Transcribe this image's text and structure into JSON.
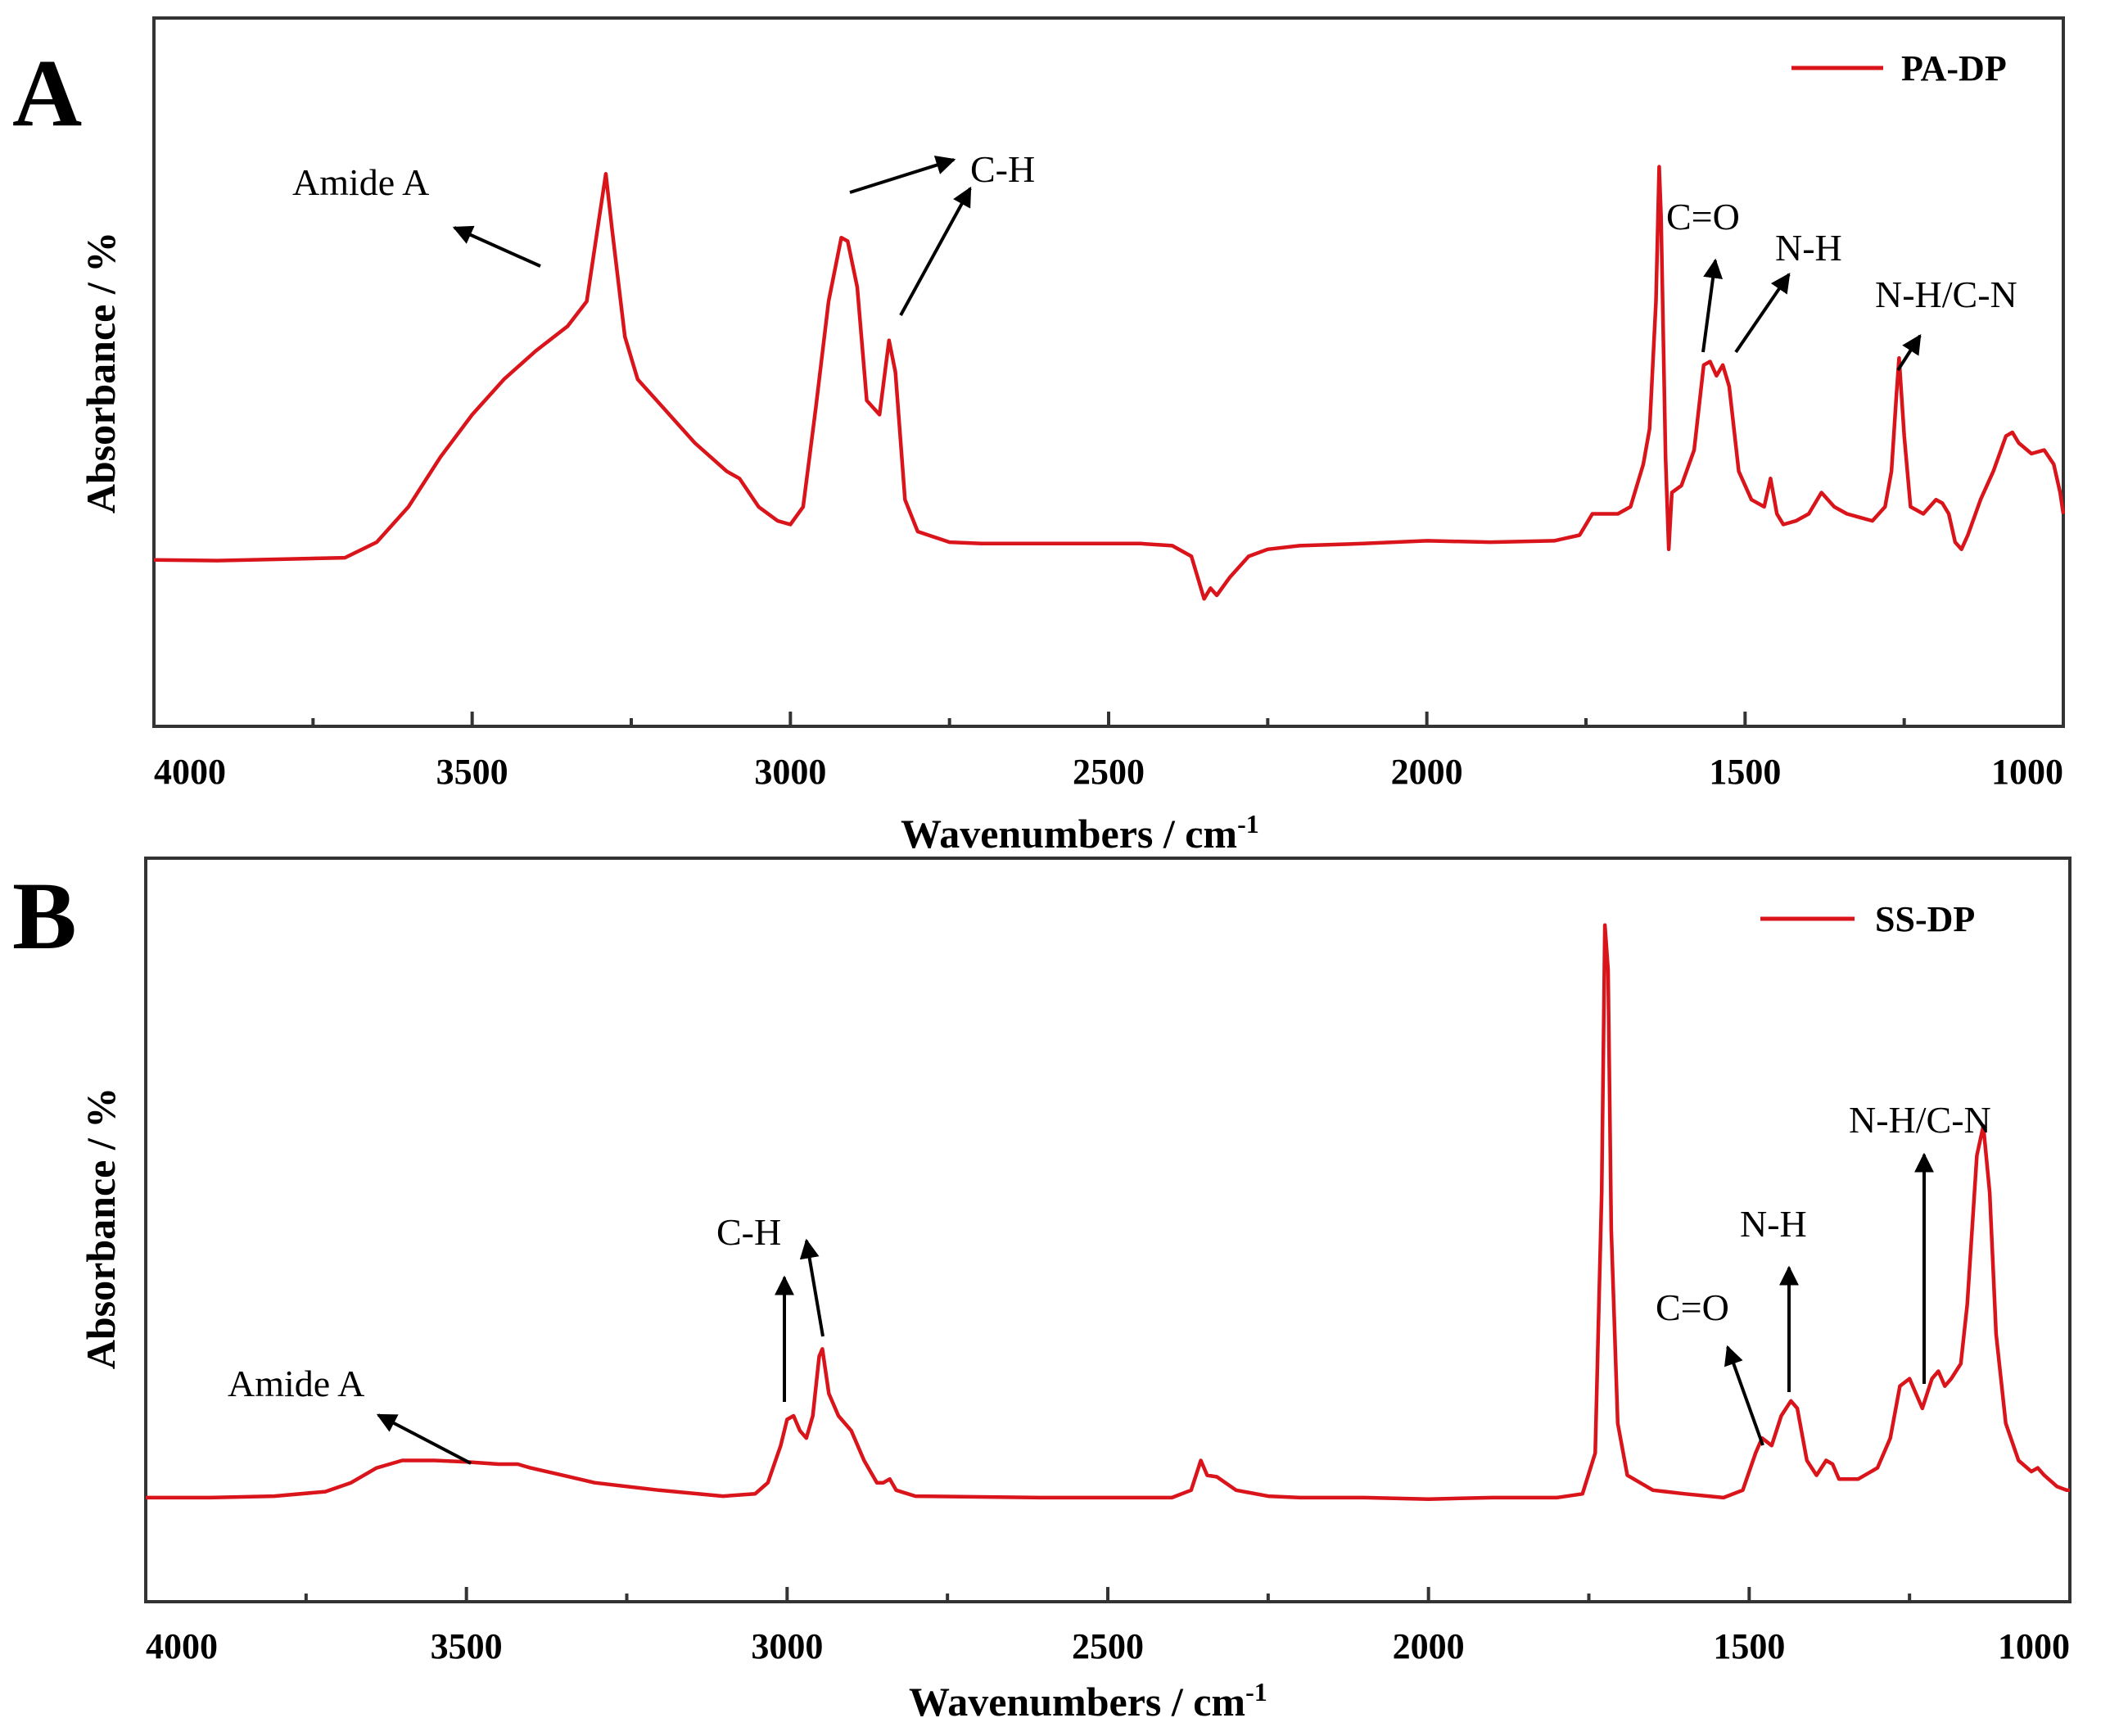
{
  "chart_data": [
    {
      "type": "line",
      "panel_label": "A",
      "xlabel": "Wavenumbers / cm",
      "xlabel_sup": "-1",
      "ylabel": "Absorbance / %",
      "xlim": [
        4000,
        1000
      ],
      "ylim": [
        0,
        1
      ],
      "xticks": [
        4000,
        3500,
        3000,
        2500,
        2000,
        1500,
        1000
      ],
      "legend": {
        "label": "PA-DP",
        "color": "#d9141a",
        "position": "top-right"
      },
      "series": [
        {
          "name": "PA-DP",
          "color": "#d9141a",
          "points": [
            [
              4000,
              0.235
            ],
            [
              3900,
              0.234
            ],
            [
              3800,
              0.236
            ],
            [
              3700,
              0.238
            ],
            [
              3650,
              0.26
            ],
            [
              3600,
              0.31
            ],
            [
              3550,
              0.38
            ],
            [
              3500,
              0.44
            ],
            [
              3450,
              0.49
            ],
            [
              3400,
              0.53
            ],
            [
              3350,
              0.565
            ],
            [
              3320,
              0.6
            ],
            [
              3300,
              0.72
            ],
            [
              3290,
              0.78
            ],
            [
              3280,
              0.7
            ],
            [
              3260,
              0.55
            ],
            [
              3240,
              0.49
            ],
            [
              3200,
              0.45
            ],
            [
              3150,
              0.4
            ],
            [
              3100,
              0.36
            ],
            [
              3080,
              0.35
            ],
            [
              3050,
              0.31
            ],
            [
              3020,
              0.29
            ],
            [
              3000,
              0.285
            ],
            [
              2980,
              0.31
            ],
            [
              2960,
              0.45
            ],
            [
              2940,
              0.6
            ],
            [
              2920,
              0.69
            ],
            [
              2910,
              0.685
            ],
            [
              2895,
              0.62
            ],
            [
              2880,
              0.46
            ],
            [
              2860,
              0.44
            ],
            [
              2845,
              0.545
            ],
            [
              2835,
              0.5
            ],
            [
              2820,
              0.32
            ],
            [
              2800,
              0.275
            ],
            [
              2750,
              0.26
            ],
            [
              2700,
              0.258
            ],
            [
              2600,
              0.258
            ],
            [
              2450,
              0.258
            ],
            [
              2400,
              0.255
            ],
            [
              2370,
              0.24
            ],
            [
              2350,
              0.18
            ],
            [
              2340,
              0.195
            ],
            [
              2330,
              0.185
            ],
            [
              2310,
              0.21
            ],
            [
              2280,
              0.24
            ],
            [
              2250,
              0.25
            ],
            [
              2200,
              0.255
            ],
            [
              2100,
              0.258
            ],
            [
              2000,
              0.262
            ],
            [
              1900,
              0.26
            ],
            [
              1800,
              0.262
            ],
            [
              1760,
              0.27
            ],
            [
              1740,
              0.3
            ],
            [
              1700,
              0.3
            ],
            [
              1680,
              0.31
            ],
            [
              1660,
              0.37
            ],
            [
              1650,
              0.42
            ],
            [
              1640,
              0.6
            ],
            [
              1635,
              0.79
            ],
            [
              1632,
              0.72
            ],
            [
              1625,
              0.38
            ],
            [
              1620,
              0.25
            ],
            [
              1615,
              0.33
            ],
            [
              1600,
              0.34
            ],
            [
              1580,
              0.39
            ],
            [
              1565,
              0.51
            ],
            [
              1555,
              0.515
            ],
            [
              1545,
              0.495
            ],
            [
              1535,
              0.51
            ],
            [
              1525,
              0.48
            ],
            [
              1510,
              0.36
            ],
            [
              1490,
              0.32
            ],
            [
              1470,
              0.31
            ],
            [
              1460,
              0.35
            ],
            [
              1450,
              0.3
            ],
            [
              1440,
              0.285
            ],
            [
              1420,
              0.29
            ],
            [
              1400,
              0.3
            ],
            [
              1380,
              0.33
            ],
            [
              1360,
              0.31
            ],
            [
              1340,
              0.3
            ],
            [
              1320,
              0.295
            ],
            [
              1300,
              0.29
            ],
            [
              1280,
              0.31
            ],
            [
              1270,
              0.36
            ],
            [
              1262,
              0.47
            ],
            [
              1258,
              0.52
            ],
            [
              1250,
              0.41
            ],
            [
              1240,
              0.31
            ],
            [
              1220,
              0.3
            ],
            [
              1200,
              0.32
            ],
            [
              1190,
              0.315
            ],
            [
              1180,
              0.3
            ],
            [
              1170,
              0.26
            ],
            [
              1160,
              0.25
            ],
            [
              1150,
              0.27
            ],
            [
              1130,
              0.32
            ],
            [
              1110,
              0.36
            ],
            [
              1090,
              0.41
            ],
            [
              1080,
              0.415
            ],
            [
              1070,
              0.4
            ],
            [
              1050,
              0.385
            ],
            [
              1030,
              0.39
            ],
            [
              1015,
              0.37
            ],
            [
              1005,
              0.33
            ],
            [
              1000,
              0.3
            ]
          ]
        }
      ],
      "annotations": [
        {
          "text": "Amide A"
        },
        {
          "text": "C-H"
        },
        {
          "text": "C=O"
        },
        {
          "text": "N-H"
        },
        {
          "text": "N-H/C-N"
        }
      ]
    },
    {
      "type": "line",
      "panel_label": "B",
      "xlabel": "Wavenumbers / cm",
      "xlabel_sup": "-1",
      "ylabel": "Absorbance / %",
      "xlim": [
        4000,
        1000
      ],
      "ylim": [
        0,
        1
      ],
      "xticks": [
        4000,
        3500,
        3000,
        2500,
        2000,
        1500,
        1000
      ],
      "legend": {
        "label": "SS-DP",
        "color": "#d9141a",
        "position": "top-right"
      },
      "series": [
        {
          "name": "SS-DP",
          "color": "#d9141a",
          "points": [
            [
              4000,
              0.14
            ],
            [
              3900,
              0.14
            ],
            [
              3800,
              0.142
            ],
            [
              3720,
              0.148
            ],
            [
              3680,
              0.16
            ],
            [
              3640,
              0.18
            ],
            [
              3600,
              0.19
            ],
            [
              3550,
              0.19
            ],
            [
              3500,
              0.188
            ],
            [
              3450,
              0.185
            ],
            [
              3420,
              0.185
            ],
            [
              3400,
              0.18
            ],
            [
              3350,
              0.17
            ],
            [
              3300,
              0.16
            ],
            [
              3200,
              0.15
            ],
            [
              3100,
              0.142
            ],
            [
              3050,
              0.145
            ],
            [
              3030,
              0.16
            ],
            [
              3010,
              0.21
            ],
            [
              3000,
              0.245
            ],
            [
              2990,
              0.25
            ],
            [
              2980,
              0.23
            ],
            [
              2970,
              0.22
            ],
            [
              2960,
              0.25
            ],
            [
              2950,
              0.33
            ],
            [
              2945,
              0.34
            ],
            [
              2935,
              0.28
            ],
            [
              2920,
              0.25
            ],
            [
              2900,
              0.23
            ],
            [
              2880,
              0.19
            ],
            [
              2860,
              0.16
            ],
            [
              2850,
              0.16
            ],
            [
              2840,
              0.165
            ],
            [
              2830,
              0.15
            ],
            [
              2800,
              0.142
            ],
            [
              2600,
              0.14
            ],
            [
              2400,
              0.14
            ],
            [
              2370,
              0.15
            ],
            [
              2355,
              0.19
            ],
            [
              2345,
              0.17
            ],
            [
              2330,
              0.168
            ],
            [
              2300,
              0.15
            ],
            [
              2250,
              0.142
            ],
            [
              2200,
              0.14
            ],
            [
              2100,
              0.14
            ],
            [
              2000,
              0.138
            ],
            [
              1900,
              0.14
            ],
            [
              1800,
              0.14
            ],
            [
              1760,
              0.145
            ],
            [
              1740,
              0.2
            ],
            [
              1730,
              0.55
            ],
            [
              1725,
              0.91
            ],
            [
              1720,
              0.85
            ],
            [
              1715,
              0.5
            ],
            [
              1705,
              0.24
            ],
            [
              1690,
              0.17
            ],
            [
              1650,
              0.15
            ],
            [
              1600,
              0.145
            ],
            [
              1540,
              0.14
            ],
            [
              1510,
              0.15
            ],
            [
              1490,
              0.2
            ],
            [
              1480,
              0.22
            ],
            [
              1465,
              0.21
            ],
            [
              1450,
              0.25
            ],
            [
              1435,
              0.27
            ],
            [
              1425,
              0.26
            ],
            [
              1410,
              0.19
            ],
            [
              1395,
              0.17
            ],
            [
              1380,
              0.19
            ],
            [
              1370,
              0.185
            ],
            [
              1360,
              0.165
            ],
            [
              1330,
              0.165
            ],
            [
              1300,
              0.18
            ],
            [
              1280,
              0.22
            ],
            [
              1265,
              0.29
            ],
            [
              1250,
              0.3
            ],
            [
              1240,
              0.28
            ],
            [
              1230,
              0.26
            ],
            [
              1215,
              0.3
            ],
            [
              1205,
              0.31
            ],
            [
              1195,
              0.29
            ],
            [
              1185,
              0.3
            ],
            [
              1170,
              0.32
            ],
            [
              1160,
              0.4
            ],
            [
              1145,
              0.6
            ],
            [
              1135,
              0.64
            ],
            [
              1125,
              0.55
            ],
            [
              1115,
              0.36
            ],
            [
              1100,
              0.24
            ],
            [
              1080,
              0.19
            ],
            [
              1060,
              0.175
            ],
            [
              1050,
              0.18
            ],
            [
              1040,
              0.17
            ],
            [
              1020,
              0.155
            ],
            [
              1005,
              0.15
            ],
            [
              1000,
              0.15
            ]
          ]
        }
      ],
      "annotations": [
        {
          "text": "Amide A"
        },
        {
          "text": "C-H"
        },
        {
          "text": "C=O"
        },
        {
          "text": "N-H"
        },
        {
          "text": "N-H/C-N"
        }
      ]
    }
  ]
}
